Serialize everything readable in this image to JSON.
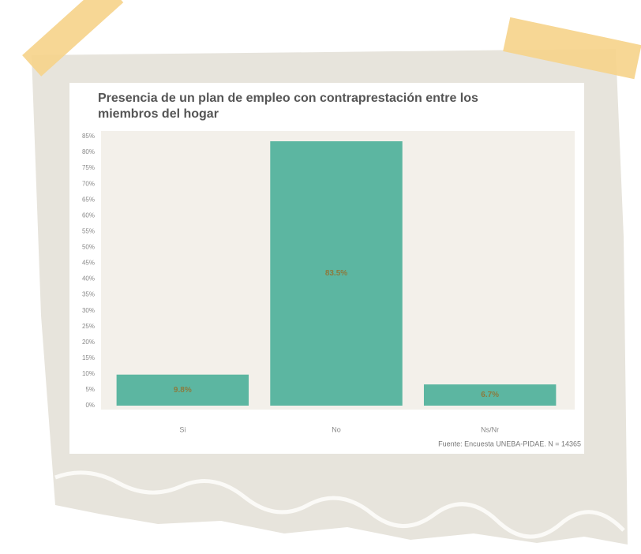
{
  "chart_data": {
    "type": "bar",
    "title": "Presencia de un plan de empleo con contraprestación entre los miembros del hogar",
    "categories": [
      "Si",
      "No",
      "Ns/Nr"
    ],
    "values": [
      9.8,
      83.5,
      6.7
    ],
    "value_labels": [
      "9.8%",
      "83.5%",
      "6.7%"
    ],
    "color": "#5cb6a1",
    "ylim": [
      0,
      85
    ],
    "yticks": [
      {
        "value": 0,
        "label": "0%"
      },
      {
        "value": 5,
        "label": "5%"
      },
      {
        "value": 10,
        "label": "10%"
      },
      {
        "value": 15,
        "label": "15%"
      },
      {
        "value": 20,
        "label": "20%"
      },
      {
        "value": 25,
        "label": "25%"
      },
      {
        "value": 30,
        "label": "30%"
      },
      {
        "value": 35,
        "label": "35%"
      },
      {
        "value": 40,
        "label": "40%"
      },
      {
        "value": 45,
        "label": "45%"
      },
      {
        "value": 50,
        "label": "50%"
      },
      {
        "value": 55,
        "label": "55%"
      },
      {
        "value": 60,
        "label": "60%"
      },
      {
        "value": 65,
        "label": "65%"
      },
      {
        "value": 70,
        "label": "70%"
      },
      {
        "value": 75,
        "label": "75%"
      },
      {
        "value": 80,
        "label": "80%"
      },
      {
        "value": 85,
        "label": "85%"
      }
    ],
    "source": "Fuente: Encuesta UNEBA-PIDAE. N = 14365"
  }
}
